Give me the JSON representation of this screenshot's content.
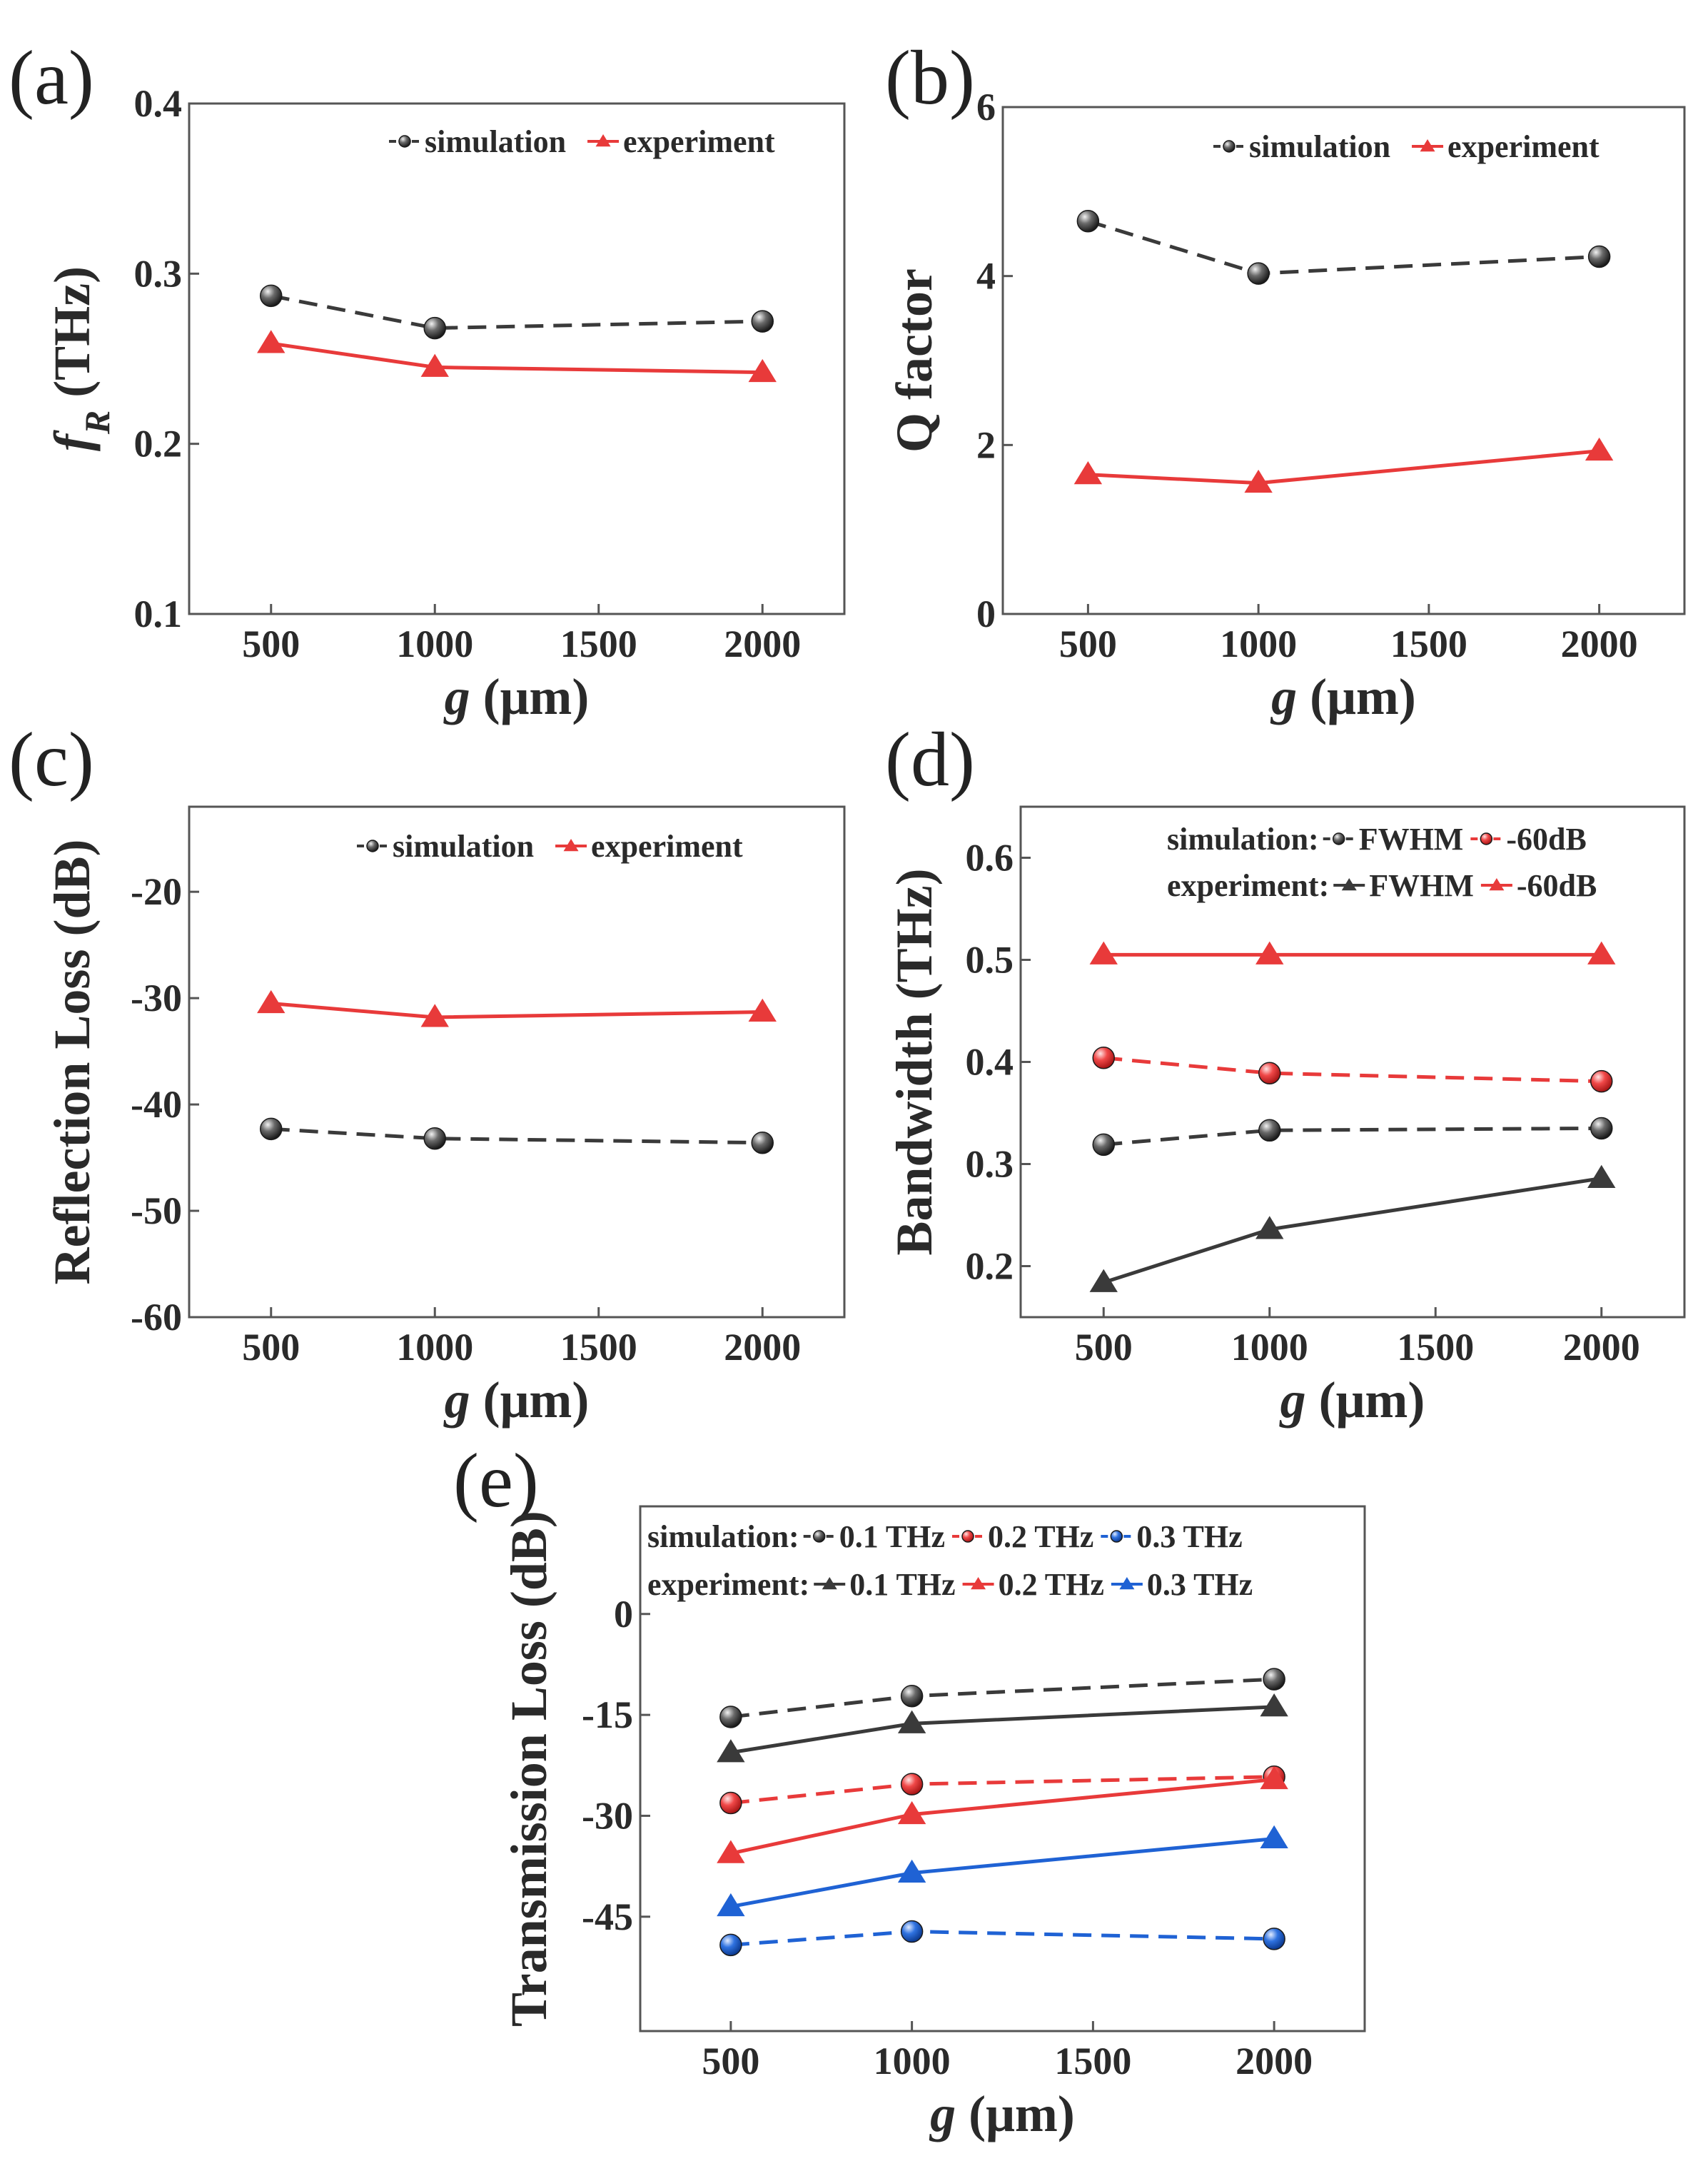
{
  "colors": {
    "black": "#3a3a3a",
    "red": "#e83a3a",
    "blue": "#1f62d4",
    "axis": "#555555"
  },
  "chart_data": [
    {
      "id": "a",
      "panel": "(a)",
      "type": "line",
      "x": [
        500,
        1000,
        2000
      ],
      "xticks": [
        "500",
        "1000",
        "1500",
        "2000"
      ],
      "xtick_values": [
        500,
        1000,
        1500,
        2000
      ],
      "xlim": [
        250,
        2250
      ],
      "ylim": [
        0.1,
        0.4
      ],
      "yticks": [
        "0.1",
        "0.2",
        "0.3",
        "0.4"
      ],
      "ytick_values": [
        0.1,
        0.2,
        0.3,
        0.4
      ],
      "xlabel_main": "g",
      "xlabel_rest": " (μm)",
      "ylabel_main": "f",
      "ylabel_sub": "R",
      "ylabel_rest": " (THz)",
      "legend_layout": "top-right-row",
      "series": [
        {
          "name": "simulation",
          "label": "simulation",
          "color": "black",
          "marker": "circle",
          "dashed": true,
          "values": [
            0.287,
            0.268,
            0.272
          ]
        },
        {
          "name": "experiment",
          "label": "experiment",
          "color": "red",
          "marker": "triangle",
          "dashed": false,
          "values": [
            0.259,
            0.245,
            0.242
          ]
        }
      ]
    },
    {
      "id": "b",
      "panel": "(b)",
      "type": "line",
      "x": [
        500,
        1000,
        2000
      ],
      "xticks": [
        "500",
        "1000",
        "1500",
        "2000"
      ],
      "xtick_values": [
        500,
        1000,
        1500,
        2000
      ],
      "xlim": [
        250,
        2250
      ],
      "ylim": [
        0,
        6
      ],
      "yticks": [
        "0",
        "2",
        "4",
        "6"
      ],
      "ytick_values": [
        0,
        2,
        4,
        6
      ],
      "xlabel_main": "g",
      "xlabel_rest": " (μm)",
      "ylabel_main": "Q factor",
      "legend_layout": "top-right-row",
      "series": [
        {
          "name": "simulation",
          "label": "simulation",
          "color": "black",
          "marker": "circle",
          "dashed": true,
          "values": [
            4.65,
            4.03,
            4.23
          ]
        },
        {
          "name": "experiment",
          "label": "experiment",
          "color": "red",
          "marker": "triangle",
          "dashed": false,
          "values": [
            1.65,
            1.55,
            1.93
          ]
        }
      ]
    },
    {
      "id": "c",
      "panel": "(c)",
      "type": "line",
      "x": [
        500,
        1000,
        2000
      ],
      "xticks": [
        "500",
        "1000",
        "1500",
        "2000"
      ],
      "xtick_values": [
        500,
        1000,
        1500,
        2000
      ],
      "xlim": [
        250,
        2250
      ],
      "ylim": [
        -60,
        -12
      ],
      "yticks": [
        "-60",
        "-50",
        "-40",
        "-30",
        "-20"
      ],
      "ytick_values": [
        -60,
        -50,
        -40,
        -30,
        -20
      ],
      "xlabel_main": "g",
      "xlabel_rest": " (μm)",
      "ylabel_main": "Reflection Loss (dB)",
      "legend_layout": "top-right-row",
      "series": [
        {
          "name": "simulation",
          "label": "simulation",
          "color": "black",
          "marker": "circle",
          "dashed": true,
          "values": [
            -42.3,
            -43.2,
            -43.6
          ]
        },
        {
          "name": "experiment",
          "label": "experiment",
          "color": "red",
          "marker": "triangle",
          "dashed": false,
          "values": [
            -30.5,
            -31.8,
            -31.3
          ]
        }
      ]
    },
    {
      "id": "d",
      "panel": "(d)",
      "type": "line",
      "x": [
        500,
        1000,
        2000
      ],
      "xticks": [
        "500",
        "1000",
        "1500",
        "2000"
      ],
      "xtick_values": [
        500,
        1000,
        1500,
        2000
      ],
      "xlim": [
        250,
        2250
      ],
      "ylim": [
        0.15,
        0.65
      ],
      "yticks": [
        "0.2",
        "0.3",
        "0.4",
        "0.5",
        "0.6"
      ],
      "ytick_values": [
        0.2,
        0.3,
        0.4,
        0.5,
        0.6
      ],
      "xlabel_main": "g",
      "xlabel_rest": " (μm)",
      "ylabel_main": "Bandwidth (THz)",
      "legend_layout": "grouped",
      "legend_rows": [
        {
          "title": "simulation:",
          "items": [
            0,
            1
          ]
        },
        {
          "title": "experiment:",
          "items": [
            2,
            3
          ]
        }
      ],
      "series": [
        {
          "name": "simulation FWHM",
          "label": "FWHM",
          "color": "black",
          "marker": "circle",
          "dashed": true,
          "values": [
            0.319,
            0.333,
            0.335
          ]
        },
        {
          "name": "simulation -60dB",
          "label": "-60dB",
          "color": "red",
          "marker": "circle",
          "dashed": true,
          "values": [
            0.404,
            0.389,
            0.381
          ]
        },
        {
          "name": "experiment FWHM",
          "label": "FWHM",
          "color": "black",
          "marker": "triangle",
          "dashed": false,
          "values": [
            0.184,
            0.236,
            0.286
          ]
        },
        {
          "name": "experiment -60dB",
          "label": "-60dB",
          "color": "red",
          "marker": "triangle",
          "dashed": false,
          "values": [
            0.505,
            0.505,
            0.505
          ]
        }
      ]
    },
    {
      "id": "e",
      "panel": "(e)",
      "type": "line",
      "x": [
        500,
        1000,
        2000
      ],
      "xticks": [
        "500",
        "1000",
        "1500",
        "2000"
      ],
      "xtick_values": [
        500,
        1000,
        1500,
        2000
      ],
      "xlim": [
        250,
        2250
      ],
      "ylim": [
        -62,
        16
      ],
      "yticks": [
        "-45",
        "-30",
        "-15",
        "0"
      ],
      "ytick_values": [
        -45,
        -30,
        -15,
        0
      ],
      "xlabel_main": "g",
      "xlabel_rest": " (μm)",
      "ylabel_main": "Transmission Loss (dB)",
      "legend_layout": "grouped",
      "legend_rows": [
        {
          "title": "simulation:",
          "items": [
            0,
            1,
            2
          ]
        },
        {
          "title": "experiment:",
          "items": [
            3,
            4,
            5
          ]
        }
      ],
      "series": [
        {
          "name": "simulation 0.1 THz",
          "label": "0.1 THz",
          "color": "black",
          "marker": "circle",
          "dashed": true,
          "values": [
            -15.3,
            -12.2,
            -9.7
          ]
        },
        {
          "name": "simulation 0.2 THz",
          "label": "0.2 THz",
          "color": "red",
          "marker": "circle",
          "dashed": true,
          "values": [
            -28.1,
            -25.3,
            -24.2
          ]
        },
        {
          "name": "simulation 0.3 THz",
          "label": "0.3 THz",
          "color": "blue",
          "marker": "circle",
          "dashed": true,
          "values": [
            -49.2,
            -47.2,
            -48.3
          ]
        },
        {
          "name": "experiment 0.1 THz",
          "label": "0.1 THz",
          "color": "black",
          "marker": "triangle",
          "dashed": false,
          "values": [
            -20.6,
            -16.3,
            -13.8
          ]
        },
        {
          "name": "experiment 0.2 THz",
          "label": "0.2 THz",
          "color": "red",
          "marker": "triangle",
          "dashed": false,
          "values": [
            -35.6,
            -29.8,
            -24.6
          ]
        },
        {
          "name": "experiment 0.3 THz",
          "label": "0.3 THz",
          "color": "blue",
          "marker": "triangle",
          "dashed": false,
          "values": [
            -43.5,
            -38.5,
            -33.4
          ]
        }
      ]
    }
  ]
}
